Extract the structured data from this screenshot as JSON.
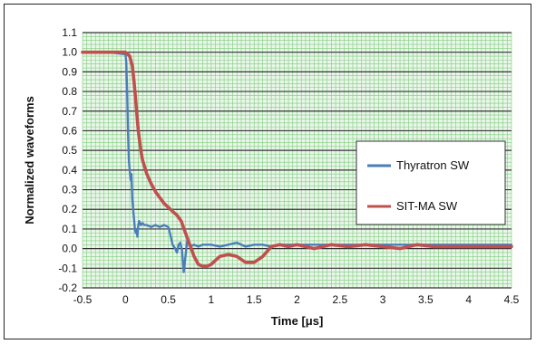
{
  "chart_data": {
    "type": "line",
    "xlabel": "Time [μs]",
    "ylabel": "Normalized waveforms",
    "xlim": [
      -0.5,
      4.5
    ],
    "ylim": [
      -0.2,
      1.1
    ],
    "x_ticks": [
      "-0.5",
      "0",
      "0.5",
      "1",
      "1.5",
      "2",
      "2.5",
      "3",
      "3.5",
      "4",
      "4.5"
    ],
    "y_ticks": [
      "1.1",
      "1.0",
      "0.9",
      "0.8",
      "0.7",
      "0.6",
      "0.5",
      "0.4",
      "0.3",
      "0.2",
      "0.1",
      "0.0",
      "-0.1",
      "-0.2"
    ],
    "grid": true,
    "legend_position": "right",
    "background_color": "#e9f6e9",
    "grid_minor_color": "#7fcc7f",
    "grid_major_color": "#333333",
    "series": [
      {
        "name": "Thyratron SW",
        "color": "#4a7ebb",
        "x": [
          -0.5,
          -0.2,
          0.0,
          0.01,
          0.02,
          0.03,
          0.04,
          0.05,
          0.06,
          0.07,
          0.08,
          0.09,
          0.1,
          0.11,
          0.12,
          0.13,
          0.14,
          0.15,
          0.16,
          0.18,
          0.2,
          0.22,
          0.25,
          0.3,
          0.35,
          0.4,
          0.45,
          0.5,
          0.53,
          0.55,
          0.58,
          0.6,
          0.62,
          0.64,
          0.66,
          0.68,
          0.7,
          0.72,
          0.75,
          0.8,
          0.85,
          0.9,
          1.0,
          1.1,
          1.2,
          1.3,
          1.4,
          1.5,
          1.6,
          1.7,
          1.8,
          2.0,
          2.5,
          3.0,
          3.5,
          4.0,
          4.5
        ],
        "y": [
          1.0,
          1.0,
          0.99,
          0.95,
          0.8,
          0.6,
          0.45,
          0.4,
          0.35,
          0.38,
          0.25,
          0.2,
          0.15,
          0.1,
          0.08,
          0.1,
          0.06,
          0.12,
          0.14,
          0.12,
          0.13,
          0.12,
          0.12,
          0.11,
          0.12,
          0.11,
          0.12,
          0.11,
          0.06,
          0.02,
          0.0,
          -0.02,
          0.02,
          0.03,
          -0.01,
          -0.12,
          -0.04,
          0.04,
          0.01,
          0.02,
          0.01,
          0.02,
          0.02,
          0.01,
          0.02,
          0.03,
          0.01,
          0.02,
          0.02,
          0.01,
          0.02,
          0.02,
          0.02,
          0.02,
          0.02,
          0.02,
          0.02
        ]
      },
      {
        "name": "SIT-MA SW",
        "color": "#c0504d",
        "x": [
          -0.5,
          -0.2,
          0.0,
          0.05,
          0.08,
          0.1,
          0.12,
          0.15,
          0.18,
          0.2,
          0.25,
          0.3,
          0.35,
          0.4,
          0.45,
          0.5,
          0.55,
          0.6,
          0.65,
          0.7,
          0.75,
          0.8,
          0.85,
          0.9,
          0.95,
          1.0,
          1.05,
          1.1,
          1.2,
          1.3,
          1.4,
          1.5,
          1.6,
          1.7,
          1.8,
          1.9,
          2.0,
          2.2,
          2.4,
          2.6,
          2.8,
          3.0,
          3.2,
          3.4,
          3.6,
          3.8,
          4.0,
          4.2,
          4.5
        ],
        "y": [
          1.0,
          1.0,
          1.0,
          0.98,
          0.93,
          0.85,
          0.75,
          0.6,
          0.5,
          0.45,
          0.38,
          0.33,
          0.29,
          0.26,
          0.23,
          0.21,
          0.19,
          0.17,
          0.14,
          0.08,
          0.02,
          -0.04,
          -0.08,
          -0.09,
          -0.09,
          -0.08,
          -0.06,
          -0.04,
          -0.03,
          -0.04,
          -0.07,
          -0.07,
          -0.04,
          0.01,
          0.02,
          0.01,
          0.02,
          0.0,
          0.02,
          0.01,
          0.02,
          0.01,
          0.0,
          0.02,
          0.01,
          0.01,
          0.01,
          0.01,
          0.01
        ]
      }
    ]
  }
}
